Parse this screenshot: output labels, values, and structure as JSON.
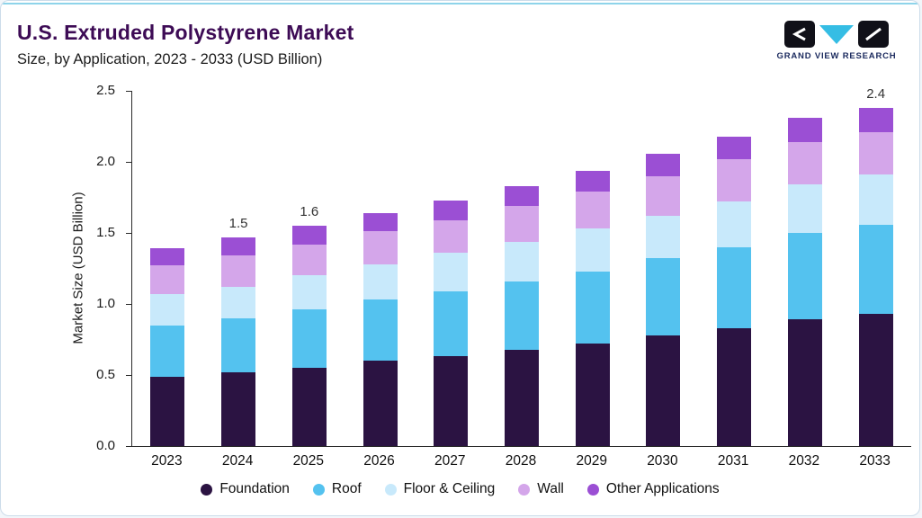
{
  "header": {
    "title": "U.S. Extruded Polystyrene Market",
    "subtitle": "Size, by Application, 2023 - 2033 (USD Billion)",
    "logo_text": "GRAND VIEW RESEARCH"
  },
  "colors": {
    "title": "#3d0b55",
    "accent_line": "#8ed4ea",
    "logo_triangle": "#35bde4",
    "logo_black": "#101018"
  },
  "chart_data": {
    "type": "bar",
    "stacked": true,
    "title": "U.S. Extruded Polystyrene Market Size, by Application, 2023 - 2033 (USD Billion)",
    "xlabel": "",
    "ylabel": "Market Size (USD Billion)",
    "ylim": [
      0,
      2.5
    ],
    "ytick_labels": [
      "0.0",
      "0.5",
      "1.0",
      "1.5",
      "2.0",
      "2.5"
    ],
    "grid": false,
    "legend_position": "bottom",
    "categories": [
      "2023",
      "2024",
      "2025",
      "2026",
      "2027",
      "2028",
      "2029",
      "2030",
      "2031",
      "2032",
      "2033"
    ],
    "series": [
      {
        "name": "Foundation",
        "color": "#2b1342",
        "values": [
          0.49,
          0.52,
          0.55,
          0.6,
          0.63,
          0.68,
          0.72,
          0.78,
          0.83,
          0.89,
          0.93
        ]
      },
      {
        "name": "Roof",
        "color": "#54c2ef",
        "values": [
          0.36,
          0.38,
          0.41,
          0.43,
          0.46,
          0.48,
          0.51,
          0.54,
          0.57,
          0.61,
          0.63
        ]
      },
      {
        "name": "Floor & Ceiling",
        "color": "#c8e9fb",
        "values": [
          0.22,
          0.22,
          0.24,
          0.25,
          0.27,
          0.28,
          0.3,
          0.3,
          0.32,
          0.34,
          0.35
        ]
      },
      {
        "name": "Wall",
        "color": "#d4a6ea",
        "values": [
          0.2,
          0.22,
          0.22,
          0.23,
          0.23,
          0.25,
          0.26,
          0.28,
          0.3,
          0.3,
          0.3
        ]
      },
      {
        "name": "Other Applications",
        "color": "#9b4fd4",
        "values": [
          0.12,
          0.13,
          0.13,
          0.13,
          0.14,
          0.14,
          0.15,
          0.16,
          0.16,
          0.17,
          0.17
        ]
      }
    ],
    "bar_labels": {
      "2024": "1.5",
      "2025": "1.6",
      "2033": "2.4"
    }
  }
}
